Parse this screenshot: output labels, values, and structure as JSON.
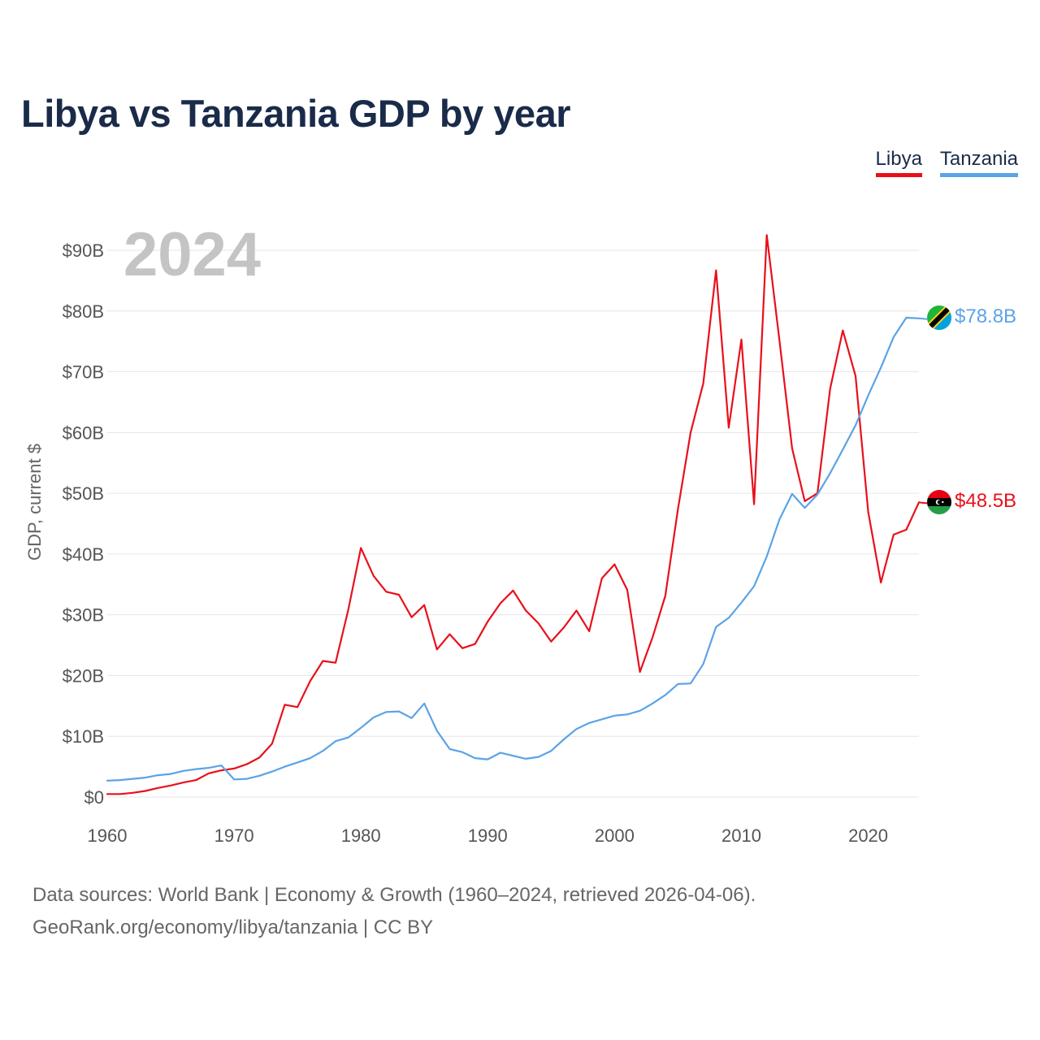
{
  "title": "Libya vs Tanzania GDP by year",
  "footer": {
    "line1": "Data sources: World Bank | Economy & Growth (1960–2024, retrieved 2026-04-06).",
    "line2": "GeoRank.org/economy/libya/tanzania | CC BY"
  },
  "chart_data": {
    "type": "line",
    "title": "Libya vs Tanzania GDP by year",
    "xlabel": "",
    "ylabel": "GDP, current $",
    "year_label": "2024",
    "xlim": [
      1960,
      2024
    ],
    "ylim": [
      0,
      92
    ],
    "y_unit": "billion US$",
    "grid": true,
    "legend_position": "top-right",
    "x_ticks": [
      1960,
      1970,
      1980,
      1990,
      2000,
      2010,
      2020
    ],
    "x_tick_labels": [
      "1960",
      "1970",
      "1980",
      "1990",
      "2000",
      "2010",
      "2020"
    ],
    "y_ticks": [
      0,
      10,
      20,
      30,
      40,
      50,
      60,
      70,
      80,
      90
    ],
    "y_tick_labels": [
      "$0",
      "$10B",
      "$20B",
      "$30B",
      "$40B",
      "$50B",
      "$60B",
      "$70B",
      "$80B",
      "$90B"
    ],
    "series": [
      {
        "name": "Libya",
        "color": "#e8101a",
        "end_label": "$48.5B",
        "flag": "libya-flag-icon",
        "x": [
          1960,
          1961,
          1962,
          1963,
          1964,
          1965,
          1966,
          1967,
          1968,
          1969,
          1970,
          1971,
          1972,
          1973,
          1974,
          1975,
          1976,
          1977,
          1978,
          1979,
          1980,
          1981,
          1982,
          1983,
          1984,
          1985,
          1986,
          1987,
          1988,
          1989,
          1990,
          1991,
          1992,
          1993,
          1994,
          1995,
          1996,
          1997,
          1998,
          1999,
          2000,
          2001,
          2002,
          2003,
          2004,
          2005,
          2006,
          2007,
          2008,
          2009,
          2010,
          2011,
          2012,
          2013,
          2014,
          2015,
          2016,
          2017,
          2018,
          2019,
          2020,
          2021,
          2022,
          2023,
          2024
        ],
        "values": [
          0.5,
          0.5,
          0.7,
          1.0,
          1.5,
          1.9,
          2.4,
          2.8,
          3.9,
          4.4,
          4.7,
          5.4,
          6.5,
          8.8,
          15.2,
          14.8,
          19.1,
          22.4,
          22.1,
          30.8,
          41.0,
          36.4,
          33.8,
          33.3,
          29.6,
          31.6,
          24.3,
          26.8,
          24.5,
          25.2,
          28.9,
          31.9,
          34.0,
          30.7,
          28.6,
          25.6,
          27.9,
          30.7,
          27.3,
          36.0,
          38.3,
          34.1,
          20.6,
          26.3,
          33.1,
          47.4,
          60.0,
          68.1,
          86.7,
          60.8,
          75.3,
          48.2,
          92.5,
          75.2,
          57.4,
          48.7,
          50.0,
          67.2,
          76.8,
          69.3,
          46.9,
          35.3,
          43.2,
          44.0,
          48.5
        ]
      },
      {
        "name": "Tanzania",
        "color": "#5ba3e6",
        "end_label": "$78.8B",
        "flag": "tanzania-flag-icon",
        "x": [
          1960,
          1961,
          1962,
          1963,
          1964,
          1965,
          1966,
          1967,
          1968,
          1969,
          1970,
          1971,
          1972,
          1973,
          1974,
          1975,
          1976,
          1977,
          1978,
          1979,
          1980,
          1981,
          1982,
          1983,
          1984,
          1985,
          1986,
          1987,
          1988,
          1989,
          1990,
          1991,
          1992,
          1993,
          1994,
          1995,
          1996,
          1997,
          1998,
          1999,
          2000,
          2001,
          2002,
          2003,
          2004,
          2005,
          2006,
          2007,
          2008,
          2009,
          2010,
          2011,
          2012,
          2013,
          2014,
          2015,
          2016,
          2017,
          2018,
          2019,
          2020,
          2021,
          2022,
          2023,
          2024
        ],
        "values": [
          2.7,
          2.8,
          3.0,
          3.2,
          3.6,
          3.8,
          4.3,
          4.6,
          4.8,
          5.2,
          2.9,
          3.0,
          3.5,
          4.2,
          5.0,
          5.7,
          6.4,
          7.6,
          9.2,
          9.8,
          11.4,
          13.1,
          14.0,
          14.1,
          13.0,
          15.4,
          10.9,
          7.9,
          7.4,
          6.4,
          6.2,
          7.3,
          6.8,
          6.3,
          6.6,
          7.6,
          9.5,
          11.2,
          12.2,
          12.8,
          13.4,
          13.6,
          14.2,
          15.4,
          16.8,
          18.6,
          18.7,
          21.9,
          28.0,
          29.5,
          32.0,
          34.7,
          39.6,
          45.7,
          49.9,
          47.6,
          49.8,
          53.3,
          57.2,
          61.2,
          66.1,
          70.7,
          75.7,
          78.9,
          78.8
        ]
      }
    ]
  }
}
